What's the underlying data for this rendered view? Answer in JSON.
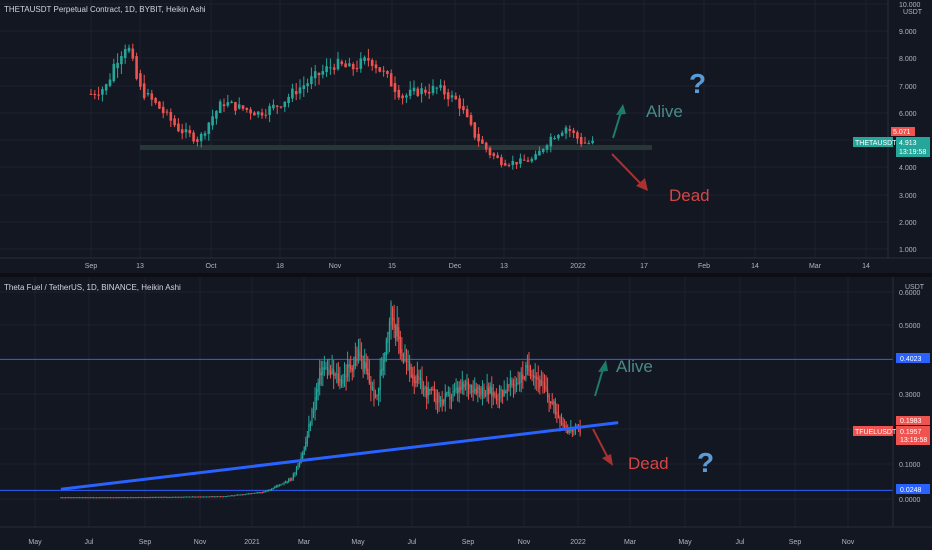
{
  "colors": {
    "background": "#131722",
    "grid": "#1e222d",
    "axis_text": "#b2b5be",
    "up": "#26a69a",
    "down": "#ef5350",
    "trendline": "#2962ff",
    "hline": "#2962ff",
    "support_band": "#2a3a3a",
    "alive_text": "#4a8a88",
    "dead_text": "#d64545",
    "question": "#5b9bd5"
  },
  "top_panel": {
    "title": "THETAUSDT Perpetual Contract, 1D, BYBIT, Heikin Ashi",
    "axis_unit": "USDT",
    "y_ticks": [
      "10.000",
      "9.000",
      "8.000",
      "7.000",
      "6.000",
      "5.000",
      "4.000",
      "3.000",
      "2.000",
      "1.000"
    ],
    "x_ticks": [
      "Sep",
      "13",
      "Oct",
      "18",
      "Nov",
      "15",
      "Dec",
      "13",
      "2022",
      "17",
      "Feb",
      "14",
      "Mar",
      "14"
    ],
    "price_labels": {
      "high": "5.071",
      "symbol": "THETAUSDT",
      "last": "4.913",
      "countdown": "13:19:58"
    },
    "annotations": {
      "alive": "Alive",
      "dead": "Dead",
      "question": "?"
    }
  },
  "bottom_panel": {
    "title": "Theta Fuel / TetherUS, 1D, BINANCE, Heikin Ashi",
    "axis_unit": "USDT",
    "y_ticks": [
      "0.6000",
      "0.5000",
      "0.3000",
      "0.2000",
      "0.1000",
      "0.0000"
    ],
    "x_ticks": [
      "May",
      "Jul",
      "Sep",
      "Nov",
      "2021",
      "Mar",
      "May",
      "Jul",
      "Sep",
      "Nov",
      "2022",
      "Mar",
      "May",
      "Jul",
      "Sep",
      "Nov"
    ],
    "price_labels": {
      "upper_line": "0.4023",
      "high": "0.1983",
      "symbol": "TFUELUSDT",
      "last": "0.1957",
      "countdown": "13:19:58",
      "lower_line": "0.0248"
    },
    "annotations": {
      "alive": "Alive",
      "dead": "Dead",
      "question": "?"
    }
  },
  "chart_data": [
    {
      "type": "candlestick",
      "title": "THETAUSDT Perpetual Contract, 1D, BYBIT, Heikin Ashi",
      "ylabel": "USDT",
      "ylim": [
        0.5,
        10
      ],
      "grid": true,
      "close_series": {
        "name": "THETAUSDT",
        "x": [
          "2021-09-01",
          "2021-09-05",
          "2021-09-07",
          "2021-09-10",
          "2021-09-13",
          "2021-09-18",
          "2021-09-23",
          "2021-09-28",
          "2021-10-01",
          "2021-10-04",
          "2021-10-08",
          "2021-10-13",
          "2021-10-18",
          "2021-10-22",
          "2021-10-27",
          "2021-11-01",
          "2021-11-05",
          "2021-11-10",
          "2021-11-14",
          "2021-11-18",
          "2021-11-22",
          "2021-11-27",
          "2021-12-02",
          "2021-12-06",
          "2021-12-10",
          "2021-12-13",
          "2021-12-17",
          "2021-12-21",
          "2021-12-25",
          "2021-12-29",
          "2022-01-02",
          "2022-01-05"
        ],
        "values": [
          6.7,
          7.0,
          7.9,
          8.6,
          6.9,
          6.2,
          5.4,
          5.0,
          5.8,
          6.4,
          6.2,
          6.0,
          6.3,
          6.8,
          7.3,
          7.8,
          7.6,
          8.0,
          7.3,
          6.6,
          6.8,
          6.9,
          6.4,
          5.2,
          4.5,
          4.2,
          4.2,
          4.3,
          5.1,
          5.5,
          4.9,
          4.9
        ]
      },
      "support_level": 4.9,
      "annotations": [
        "Alive",
        "Dead",
        "?"
      ]
    },
    {
      "type": "candlestick",
      "title": "Theta Fuel / TetherUS, 1D, BINANCE, Heikin Ashi",
      "ylabel": "USDT",
      "ylim": [
        -0.01,
        0.68
      ],
      "grid": true,
      "close_series": {
        "name": "TFUELUSDT",
        "x": [
          "2020-06-01",
          "2020-08-01",
          "2020-10-01",
          "2020-12-01",
          "2021-01-15",
          "2021-02-15",
          "2021-03-01",
          "2021-03-20",
          "2021-04-10",
          "2021-05-01",
          "2021-05-20",
          "2021-06-05",
          "2021-06-20",
          "2021-07-10",
          "2021-08-01",
          "2021-09-01",
          "2021-10-01",
          "2021-10-20",
          "2021-11-10",
          "2021-12-01",
          "2021-12-20",
          "2022-01-05"
        ],
        "values": [
          0.005,
          0.005,
          0.006,
          0.008,
          0.02,
          0.06,
          0.15,
          0.38,
          0.34,
          0.42,
          0.28,
          0.55,
          0.4,
          0.32,
          0.28,
          0.33,
          0.3,
          0.33,
          0.38,
          0.28,
          0.2,
          0.196
        ]
      },
      "trendline": {
        "from": [
          "2020-06-01",
          0.028
        ],
        "to": [
          "2022-02-15",
          0.22
        ]
      },
      "horizontal_lines": [
        0.4023,
        0.0248
      ],
      "annotations": [
        "Alive",
        "Dead",
        "?"
      ]
    }
  ]
}
